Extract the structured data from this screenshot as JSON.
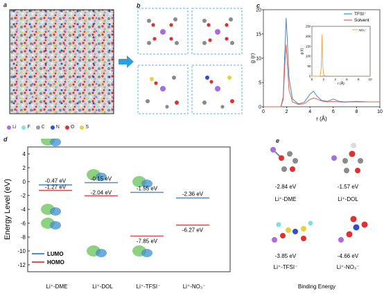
{
  "panels": {
    "a": "a",
    "b": "b",
    "c": "c",
    "d": "d",
    "e": "e"
  },
  "panel_a": {
    "legend": [
      {
        "symbol": "Li",
        "color": "#a56ee0"
      },
      {
        "symbol": "F",
        "color": "#7fe0e0"
      },
      {
        "symbol": "C",
        "color": "#9a9a9a"
      },
      {
        "symbol": "N",
        "color": "#2f4fd0"
      },
      {
        "symbol": "O",
        "color": "#e03030"
      },
      {
        "symbol": "S",
        "color": "#e6d23a"
      }
    ]
  },
  "chart_data": [
    {
      "type": "line",
      "xlabel": "r (Å)",
      "ylabel": "g (r)",
      "xlim": [
        0,
        10
      ],
      "ylim": [
        0,
        20
      ],
      "xticks": [
        "0",
        "2",
        "4",
        "6",
        "8",
        "10"
      ],
      "yticks": [
        "0",
        "5",
        "10",
        "15",
        "20"
      ],
      "legend_position": "top-right",
      "series": [
        {
          "name": "TFSI⁻",
          "color": "#4a86c8",
          "x": [
            0,
            1.5,
            1.7,
            1.85,
            1.95,
            2.05,
            2.2,
            2.5,
            3.0,
            3.5,
            4.0,
            4.3,
            4.6,
            5.0,
            5.5,
            6.0,
            6.5,
            7.0,
            7.5,
            8.0,
            8.5,
            9.0,
            9.5,
            10
          ],
          "y": [
            0,
            0,
            2,
            12,
            18.3,
            14,
            6,
            1.6,
            0.6,
            0.9,
            2.6,
            3.2,
            2.2,
            1.3,
            1.1,
            1.6,
            1.1,
            1.0,
            1.05,
            1.1,
            1.05,
            1.0,
            1.0,
            1.0
          ]
        },
        {
          "name": "Solvent",
          "color": "#e0604a",
          "x": [
            0,
            1.5,
            1.7,
            1.85,
            1.95,
            2.05,
            2.2,
            2.5,
            3.0,
            3.5,
            4.0,
            4.3,
            4.6,
            5.0,
            5.5,
            6.0,
            6.5,
            7.0,
            7.5,
            8.0,
            8.5,
            9.0,
            9.5,
            10
          ],
          "y": [
            0,
            0,
            1.5,
            9,
            12.8,
            9,
            3.5,
            1.0,
            0.5,
            0.6,
            1.5,
            1.8,
            1.6,
            1.2,
            1.0,
            1.1,
            1.0,
            0.95,
            1.0,
            1.0,
            1.0,
            1.0,
            1.0,
            1.0
          ]
        }
      ],
      "inset": {
        "xlabel": "r (Å)",
        "ylabel": "g (r)",
        "xlim": [
          0,
          10
        ],
        "ylim": [
          0,
          250
        ],
        "xticks": [
          "0",
          "2",
          "4",
          "6",
          "8",
          "10"
        ],
        "yticks": [
          "0",
          "50",
          "100",
          "150",
          "200",
          "250"
        ],
        "series": [
          {
            "name": "NO₃⁻",
            "color": "#f0a040",
            "x": [
              0,
              1.4,
              1.6,
              1.75,
              1.85,
              2.0,
              2.3,
              3.0,
              4.0,
              5.0,
              6.0,
              7.0,
              8.0,
              9.0,
              10
            ],
            "y": [
              0,
              0,
              40,
              210,
              60,
              8,
              2,
              1,
              1,
              1,
              1,
              1,
              1,
              1,
              1
            ]
          }
        ]
      }
    },
    {
      "type": "scatter",
      "ylabel": "Energy Level (eV)",
      "ylim": [
        -13,
        5
      ],
      "yticks": [
        "4",
        "2",
        "0",
        "-2",
        "-4",
        "-6",
        "-8",
        "-10",
        "-12"
      ],
      "categories": [
        "Li⁺-DME",
        "Li⁺-DOL",
        "Li⁺-TFSI⁻",
        "Li⁺-NO₃⁻"
      ],
      "legend_position": "bottom-left",
      "series": [
        {
          "name": "LUMO",
          "color": "#4a90c8",
          "values": [
            -0.47,
            -0.15,
            -1.55,
            -2.36
          ],
          "labels": [
            "-0.47 eV",
            "-0.15 eV",
            "-1.55 eV",
            "-2.36 eV"
          ]
        },
        {
          "name": "HOMO",
          "color": "#e05050",
          "values": [
            -1.27,
            -2.04,
            -7.85,
            -6.27
          ],
          "labels": [
            "-1.27 eV",
            "-2.04 eV",
            "-7.85 eV",
            "-6.27 eV"
          ]
        }
      ]
    }
  ],
  "panel_e": {
    "items": [
      {
        "energy": "-2.84 eV",
        "name": "Li⁺-DME"
      },
      {
        "energy": "-1.57 eV",
        "name": "Li⁺-DOL"
      },
      {
        "energy": "-3.85 eV",
        "name": "Li⁺-TFSI⁻"
      },
      {
        "energy": "-4.66 eV",
        "name": "Li⁺-NO₃⁻"
      }
    ],
    "footer": "Binding Energy"
  }
}
